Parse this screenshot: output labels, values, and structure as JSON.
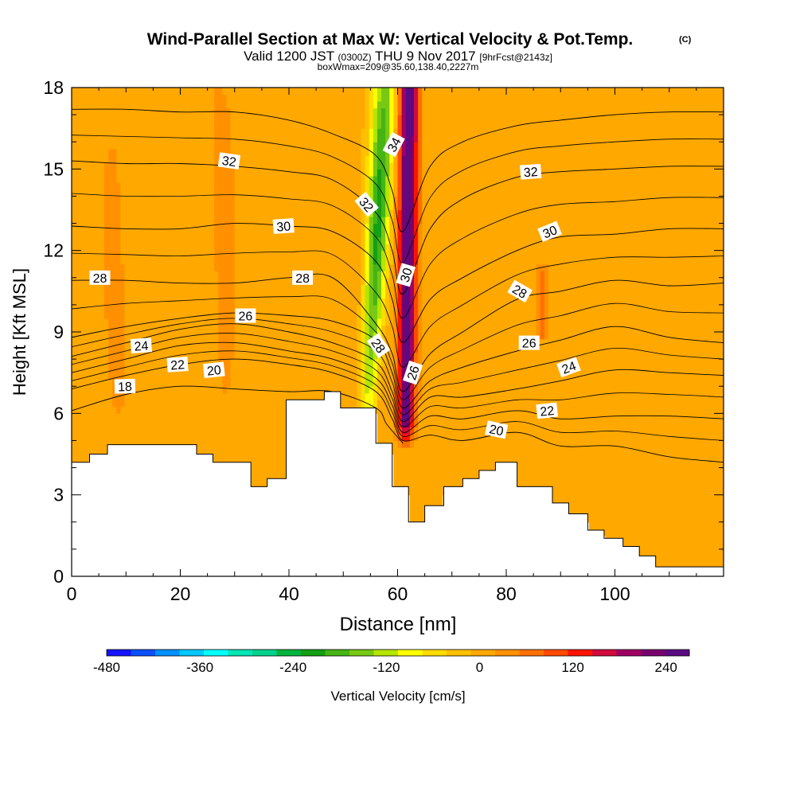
{
  "chart_data": {
    "type": "heatmap",
    "title": "Wind-Parallel Section at Max W: Vertical Velocity & Pot.Temp.",
    "title_mark": "(C)",
    "subtitle": {
      "prefix": "Valid 1200 JST",
      "zulu": "(0300Z)",
      "middle": "THU 9 Nov 2017",
      "fcst": "[9hrFcst@2143z]"
    },
    "box_note": "boxWmax=209@35.60,138.40,2227m",
    "xlabel": "Distance [nm]",
    "ylabel": "Height [Kft MSL]",
    "xlim": [
      0,
      120
    ],
    "ylim": [
      0,
      18
    ],
    "x_ticks": [
      "0",
      "20",
      "40",
      "60",
      "80",
      "100"
    ],
    "y_ticks": [
      "0",
      "3",
      "6",
      "9",
      "12",
      "15",
      "18"
    ],
    "colorbar": {
      "label": "Vertical Velocity [cm/s]",
      "min": -480,
      "max": 270,
      "ticks": [
        "-480",
        "-360",
        "-240",
        "-120",
        "0",
        "120",
        "240"
      ],
      "colors": [
        "#1414ff",
        "#0a50ff",
        "#0090ff",
        "#00c8ff",
        "#00ffff",
        "#00e6b4",
        "#00d28c",
        "#00b43c",
        "#14a014",
        "#46b414",
        "#78c814",
        "#b4e600",
        "#ffff00",
        "#ffdc00",
        "#ffc000",
        "#ffa800",
        "#ff9000",
        "#ff7000",
        "#ff4a00",
        "#ff1400",
        "#d20a3c",
        "#a00064",
        "#78006e",
        "#5a0a82"
      ]
    },
    "velocity_field": {
      "background_cm_s": 5,
      "features": [
        {
          "kind": "updraft_core",
          "x": 61.5,
          "y_bottom": 4.9,
          "y_top": 18,
          "peak_cm_s": 260
        },
        {
          "kind": "downdraft_lee",
          "x": 54.5,
          "y_bottom": 6.2,
          "y_top": 18,
          "peak_cm_s": -210
        },
        {
          "kind": "updraft_band",
          "x": 86.5,
          "y_bottom": 9,
          "y_top": 11,
          "peak_cm_s": 60
        },
        {
          "kind": "updraft_band",
          "x": 28,
          "y_bottom": 5,
          "y_top": 18,
          "peak_cm_s": 25
        },
        {
          "kind": "updraft_band",
          "x": 8,
          "y_bottom": 5.5,
          "y_top": 18,
          "peak_cm_s": 20
        }
      ]
    },
    "terrain": {
      "x": [
        0,
        3.3,
        3.3,
        6.6,
        6.6,
        23,
        23,
        26,
        26,
        33,
        33,
        36,
        36,
        39.5,
        39.5,
        46.5,
        46.5,
        49.5,
        49.5,
        56,
        56,
        59,
        59,
        62,
        62,
        65,
        65,
        68.5,
        68.5,
        72,
        72,
        75,
        75,
        78,
        78,
        82,
        82,
        88.5,
        88.5,
        91.5,
        91.5,
        95,
        95,
        98,
        98,
        101.5,
        101.5,
        104.5,
        104.5,
        107.5,
        107.5,
        110.5,
        110.5,
        120
      ],
      "height_kft": [
        4.2,
        4.2,
        4.5,
        4.5,
        4.85,
        4.85,
        4.5,
        4.5,
        4.2,
        4.2,
        3.3,
        3.3,
        3.6,
        3.6,
        6.5,
        6.5,
        6.8,
        6.8,
        6.2,
        6.2,
        4.9,
        4.9,
        3.3,
        3.3,
        2.0,
        2.0,
        2.6,
        2.6,
        3.3,
        3.3,
        3.6,
        3.6,
        3.9,
        3.9,
        4.2,
        4.2,
        3.3,
        3.3,
        2.7,
        2.7,
        2.3,
        2.3,
        1.7,
        1.7,
        1.4,
        1.4,
        1.1,
        1.1,
        0.75,
        0.75,
        0.35,
        0.35,
        0.35,
        0.35
      ]
    },
    "isentropes": [
      {
        "theta": "18",
        "points": [
          [
            0,
            6.1
          ],
          [
            10,
            6.7
          ],
          [
            20,
            7.0
          ],
          [
            30,
            6.9
          ],
          [
            40,
            6.8
          ],
          [
            48,
            6.8
          ],
          [
            56,
            6.2
          ],
          [
            58,
            5.6
          ],
          [
            61,
            4.9
          ]
        ]
      },
      {
        "theta": "20",
        "points": [
          [
            0,
            6.9
          ],
          [
            10,
            7.4
          ],
          [
            20,
            7.8
          ],
          [
            30,
            8.0
          ],
          [
            40,
            7.8
          ],
          [
            48,
            7.5
          ],
          [
            56,
            6.8
          ],
          [
            59,
            5.8
          ],
          [
            61,
            5.0
          ],
          [
            66,
            5.2
          ],
          [
            72,
            5.0
          ],
          [
            82,
            5.3
          ],
          [
            90,
            4.8
          ],
          [
            100,
            4.8
          ],
          [
            110,
            4.4
          ],
          [
            120,
            4.2
          ]
        ]
      },
      {
        "theta": "22",
        "points": [
          [
            0,
            7.5
          ],
          [
            10,
            8.0
          ],
          [
            20,
            8.5
          ],
          [
            30,
            8.6
          ],
          [
            40,
            8.3
          ],
          [
            48,
            8.0
          ],
          [
            56,
            7.3
          ],
          [
            59,
            6.3
          ],
          [
            61,
            5.3
          ],
          [
            66,
            5.9
          ],
          [
            72,
            5.8
          ],
          [
            82,
            6.1
          ],
          [
            90,
            5.8
          ],
          [
            100,
            5.9
          ],
          [
            110,
            5.9
          ],
          [
            120,
            5.8
          ]
        ]
      },
      {
        "theta": "24",
        "points": [
          [
            0,
            8.1
          ],
          [
            10,
            8.6
          ],
          [
            20,
            9.1
          ],
          [
            30,
            9.3
          ],
          [
            40,
            9.0
          ],
          [
            48,
            8.6
          ],
          [
            56,
            7.9
          ],
          [
            59,
            6.8
          ],
          [
            61,
            5.7
          ],
          [
            66,
            6.6
          ],
          [
            72,
            6.6
          ],
          [
            82,
            6.9
          ],
          [
            90,
            7.2
          ],
          [
            100,
            7.6
          ],
          [
            110,
            7.5
          ],
          [
            120,
            7.4
          ]
        ]
      },
      {
        "theta": "26",
        "points": [
          [
            0,
            8.8
          ],
          [
            10,
            9.2
          ],
          [
            20,
            9.5
          ],
          [
            30,
            9.7
          ],
          [
            40,
            9.6
          ],
          [
            48,
            9.4
          ],
          [
            56,
            8.7
          ],
          [
            59,
            7.5
          ],
          [
            61,
            6.2
          ],
          [
            66,
            7.2
          ],
          [
            72,
            7.7
          ],
          [
            82,
            8.3
          ],
          [
            90,
            8.7
          ],
          [
            100,
            9.2
          ],
          [
            110,
            8.8
          ],
          [
            120,
            8.6
          ]
        ]
      },
      {
        "theta": "28",
        "points": [
          [
            0,
            10.9
          ],
          [
            10,
            10.9
          ],
          [
            20,
            10.8
          ],
          [
            30,
            10.8
          ],
          [
            40,
            11.0
          ],
          [
            48,
            11.0
          ],
          [
            56,
            9.3
          ],
          [
            59,
            8.2
          ],
          [
            61,
            6.8
          ],
          [
            66,
            8.2
          ],
          [
            72,
            9.0
          ],
          [
            82,
            10.2
          ],
          [
            90,
            10.5
          ],
          [
            100,
            10.9
          ],
          [
            110,
            10.7
          ],
          [
            120,
            10.8
          ]
        ]
      },
      {
        "theta": "30",
        "points": [
          [
            0,
            12.9
          ],
          [
            10,
            12.8
          ],
          [
            20,
            12.8
          ],
          [
            30,
            13.0
          ],
          [
            40,
            12.9
          ],
          [
            48,
            12.7
          ],
          [
            56,
            11.6
          ],
          [
            59,
            10.2
          ],
          [
            61,
            8.6
          ],
          [
            66,
            10.2
          ],
          [
            72,
            11.0
          ],
          [
            82,
            12.0
          ],
          [
            90,
            12.5
          ],
          [
            100,
            12.6
          ],
          [
            110,
            12.8
          ],
          [
            120,
            12.8
          ]
        ]
      },
      {
        "theta": "32",
        "points": [
          [
            0,
            15.3
          ],
          [
            10,
            15.2
          ],
          [
            20,
            15.2
          ],
          [
            30,
            15.1
          ],
          [
            40,
            14.9
          ],
          [
            48,
            14.6
          ],
          [
            56,
            13.4
          ],
          [
            59,
            12.0
          ],
          [
            61,
            10.4
          ],
          [
            66,
            12.8
          ],
          [
            72,
            13.9
          ],
          [
            82,
            14.7
          ],
          [
            90,
            14.9
          ],
          [
            100,
            15.0
          ],
          [
            110,
            15.1
          ],
          [
            120,
            15.1
          ]
        ]
      },
      {
        "theta": "34",
        "points": [
          [
            0,
            17.2
          ],
          [
            10,
            17.2
          ],
          [
            20,
            17.1
          ],
          [
            30,
            17.1
          ],
          [
            40,
            16.8
          ],
          [
            48,
            16.3
          ],
          [
            56,
            15.5
          ],
          [
            59,
            14.2
          ],
          [
            61,
            12.7
          ],
          [
            66,
            15.1
          ],
          [
            72,
            16.0
          ],
          [
            82,
            16.6
          ],
          [
            90,
            16.8
          ],
          [
            100,
            17.0
          ],
          [
            110,
            17.1
          ],
          [
            120,
            17.1
          ]
        ]
      }
    ],
    "contour_labels": [
      {
        "text": "32",
        "x": 29,
        "y": 15.3,
        "angle": 8
      },
      {
        "text": "34",
        "x": 59.3,
        "y": 15.9,
        "angle": -62
      },
      {
        "text": "32",
        "x": 54.3,
        "y": 13.7,
        "angle": 50
      },
      {
        "text": "32",
        "x": 84.5,
        "y": 14.9,
        "angle": -4
      },
      {
        "text": "30",
        "x": 39,
        "y": 12.9,
        "angle": -4
      },
      {
        "text": "30",
        "x": 88,
        "y": 12.7,
        "angle": -22
      },
      {
        "text": "28",
        "x": 5.2,
        "y": 11.0,
        "angle": 0
      },
      {
        "text": "28",
        "x": 42.5,
        "y": 11.0,
        "angle": 0
      },
      {
        "text": "30",
        "x": 61.5,
        "y": 11.1,
        "angle": -74
      },
      {
        "text": "28",
        "x": 82.5,
        "y": 10.5,
        "angle": 30
      },
      {
        "text": "26",
        "x": 32,
        "y": 9.6,
        "angle": 0
      },
      {
        "text": "24",
        "x": 12.8,
        "y": 8.5,
        "angle": -4
      },
      {
        "text": "28",
        "x": 56.5,
        "y": 8.5,
        "angle": 55
      },
      {
        "text": "26",
        "x": 84.2,
        "y": 8.6,
        "angle": 0
      },
      {
        "text": "22",
        "x": 19.5,
        "y": 7.8,
        "angle": -4
      },
      {
        "text": "20",
        "x": 26.2,
        "y": 7.6,
        "angle": -6
      },
      {
        "text": "26",
        "x": 62.8,
        "y": 7.5,
        "angle": -72
      },
      {
        "text": "24",
        "x": 91.5,
        "y": 7.7,
        "angle": -20
      },
      {
        "text": "18",
        "x": 9.8,
        "y": 7.0,
        "angle": -2
      },
      {
        "text": "22",
        "x": 87.5,
        "y": 6.1,
        "angle": -6
      },
      {
        "text": "20",
        "x": 78.2,
        "y": 5.4,
        "angle": 12
      }
    ]
  }
}
